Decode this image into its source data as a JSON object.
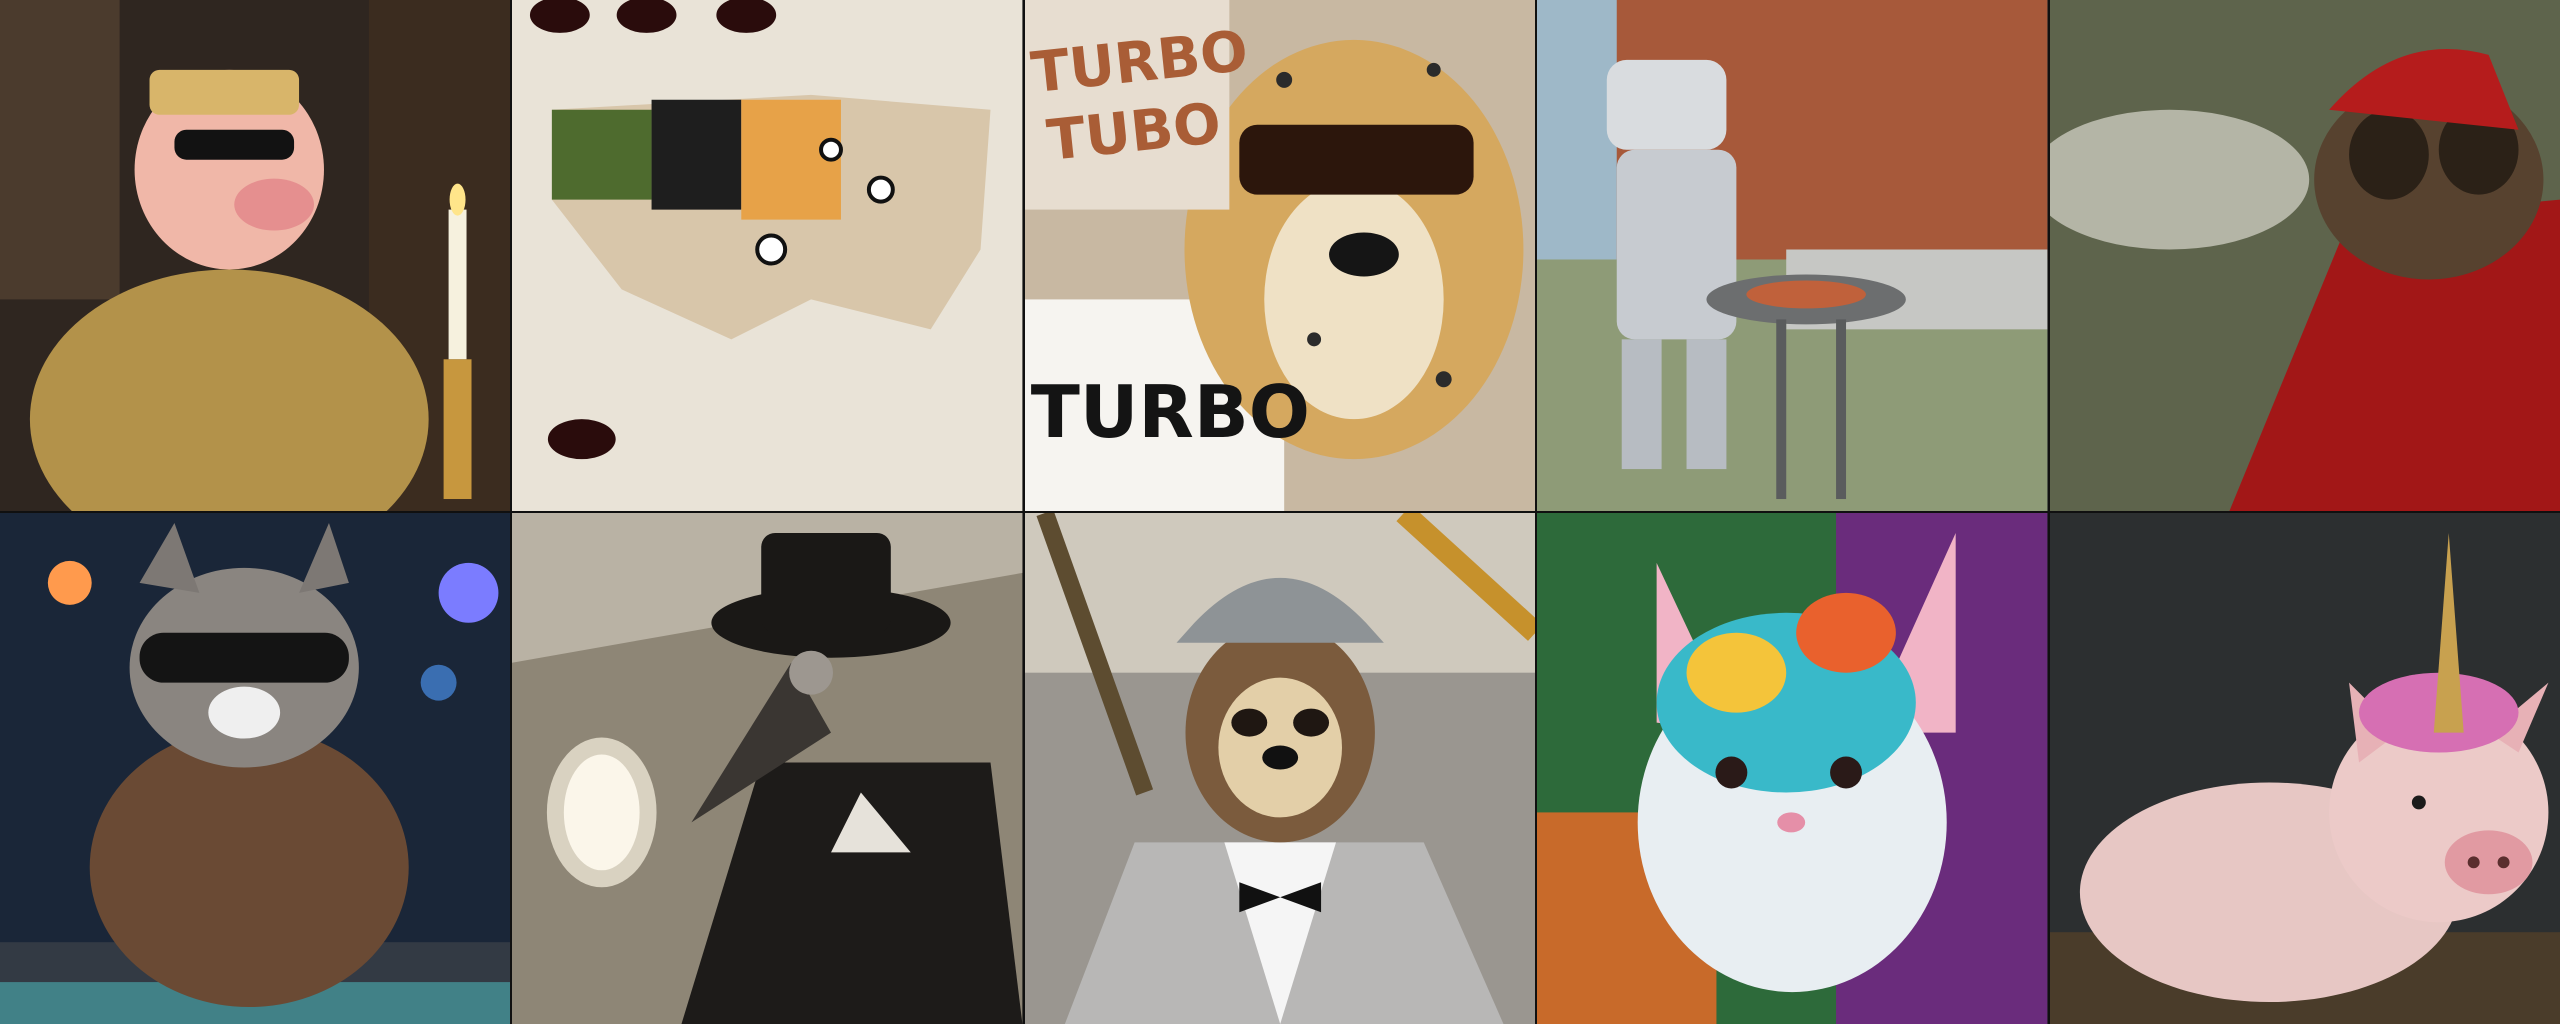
{
  "images": [
    {
      "subject": "pig-priest",
      "bg": "#3a2e22"
    },
    {
      "subject": "usa-food-map",
      "bg": "#e8e2d6"
    },
    {
      "subject": "cheetah-turbo",
      "bg": "#c9b9a4",
      "texts": [
        "TURBO",
        "TUBO",
        "TURBO"
      ]
    },
    {
      "subject": "robot-grill",
      "bg": "#8f9aa1"
    },
    {
      "subject": "fly-wizard",
      "bg": "#5b5f49"
    },
    {
      "subject": "raccoon-dj",
      "bg": "#1c2a3c"
    },
    {
      "subject": "plague-doctor-plane",
      "bg": "#6e6658"
    },
    {
      "subject": "sloth-tuxedo",
      "bg": "#8d8b8a"
    },
    {
      "subject": "rainbow-bunny",
      "bg": "#2d5e3a"
    },
    {
      "subject": "unicorn-pig",
      "bg": "#2a2d2f"
    }
  ]
}
